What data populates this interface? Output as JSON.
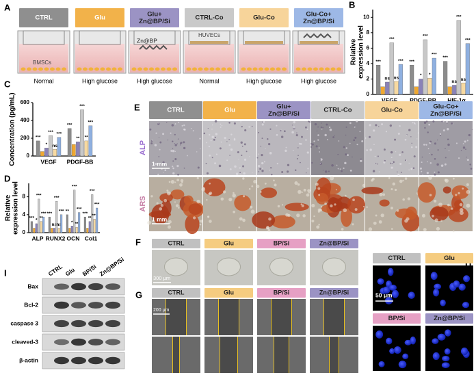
{
  "panel_letters": [
    "A",
    "B",
    "C",
    "D",
    "E",
    "F",
    "G",
    "H",
    "I"
  ],
  "panel_a": {
    "groups": [
      [
        "CTRL"
      ],
      [
        "Glu"
      ],
      [
        "Glu+",
        "Zn@BP/Si"
      ],
      [
        "CTRL-Co"
      ],
      [
        "Glu-Co"
      ],
      [
        "Glu-Co+",
        "Zn@BP/Si"
      ]
    ],
    "conditions": [
      "Normal",
      "High glucose",
      "High glucose",
      "Normal",
      "High glucose",
      "High glucose"
    ],
    "cell_bottom": "BMSCs",
    "material": "Zn@BP",
    "cell_top": "HUVECs"
  },
  "panel_e": {
    "groups": [
      [
        "CTRL"
      ],
      [
        "Glu"
      ],
      [
        "Glu+",
        "Zn@BP/Si"
      ],
      [
        "CTRL-Co"
      ],
      [
        "Glu-Co"
      ],
      [
        "Glu-Co+",
        "Zn@BP/Si"
      ]
    ],
    "rows": [
      "ALP",
      "ARS"
    ],
    "scale_bar": "1 mm"
  },
  "panel_f": {
    "groups": [
      "CTRL",
      "Glu",
      "BP/Si",
      "Zn@BP/Si"
    ],
    "scale_bar": "300 μm"
  },
  "panel_g": {
    "groups": [
      "CTRL",
      "Glu",
      "BP/Si",
      "Zn@BP/Si"
    ],
    "scale_bar": "200 μm"
  },
  "panel_h": {
    "groups": [
      "CTRL",
      "Glu",
      "BP/Si",
      "Zn@BP/Si"
    ],
    "scale_bar": "50 μm"
  },
  "panel_i": {
    "lanes": [
      "CTRL",
      "Glu",
      "BP/Si",
      "Zn@BP/Si"
    ],
    "proteins": [
      "Bax",
      "Bcl-2",
      "caspase 3",
      "cleaved-3",
      "β-actin"
    ]
  },
  "chart_data": [
    {
      "type": "bar",
      "y_label": [
        "Relative",
        "expression level"
      ],
      "categories": [
        "VEGF",
        "PDGF-BB",
        "HIF-1α"
      ],
      "ylim": [
        0,
        11
      ],
      "yticks": [
        0,
        2,
        4,
        6,
        8,
        10
      ],
      "series": [
        {
          "color": "#8c8c8c",
          "values": [
            3.8,
            3.8,
            4.3
          ],
          "significance": [
            "***",
            "***",
            "***"
          ]
        },
        {
          "color": "#f0a830",
          "values": [
            1,
            1,
            1
          ],
          "significance": [
            null,
            null,
            null
          ]
        },
        {
          "color": "#8a82b8",
          "values": [
            1.6,
            2.0,
            1.2
          ],
          "significance": [
            "ns",
            "*",
            "ns"
          ]
        },
        {
          "color": "#c8c8c8",
          "values": [
            6.7,
            7.1,
            9.6
          ],
          "significance": [
            "***",
            "***",
            "***"
          ]
        },
        {
          "color": "#f7d9a0",
          "values": [
            1.7,
            2.1,
            1.5
          ],
          "significance": [
            "ns",
            "*",
            "ns"
          ]
        },
        {
          "color": "#8fb0e0",
          "values": [
            3.9,
            4.7,
            6.6
          ],
          "significance": [
            "***",
            "***",
            "***"
          ]
        }
      ]
    },
    {
      "type": "bar",
      "y_label": [
        "Concentration (pg/mL)"
      ],
      "categories": [
        "VEGF",
        "PDGF-BB"
      ],
      "ylim": [
        0,
        600
      ],
      "yticks": [
        0,
        200,
        400,
        600
      ],
      "series": [
        {
          "color": "#8c8c8c",
          "values": [
            170,
            310
          ],
          "significance": [
            "***",
            "***"
          ]
        },
        {
          "color": "#f0a830",
          "values": [
            50,
            130
          ],
          "significance": [
            null,
            null
          ]
        },
        {
          "color": "#8a82b8",
          "values": [
            90,
            160
          ],
          "significance": [
            "*",
            "**"
          ]
        },
        {
          "color": "#c8c8c8",
          "values": [
            230,
            520
          ],
          "significance": [
            "***",
            "***"
          ]
        },
        {
          "color": "#f7d9a0",
          "values": [
            75,
            170
          ],
          "significance": [
            "ns",
            "**"
          ]
        },
        {
          "color": "#8fb0e0",
          "values": [
            210,
            340
          ],
          "significance": [
            "***",
            "***"
          ]
        }
      ]
    },
    {
      "type": "bar",
      "y_label": [
        "Relative",
        "expression level"
      ],
      "categories": [
        "ALP",
        "RUNX2",
        "OCN",
        "Col1"
      ],
      "ylim": [
        0,
        11
      ],
      "yticks": [
        0,
        4,
        8
      ],
      "series": [
        {
          "color": "#8c8c8c",
          "values": [
            2.5,
            3.5,
            4,
            3.5
          ],
          "significance": [
            "***",
            "***",
            "**",
            "***"
          ]
        },
        {
          "color": "#f0a830",
          "values": [
            1,
            1,
            1,
            1
          ],
          "significance": [
            null,
            null,
            null,
            null
          ]
        },
        {
          "color": "#8a82b8",
          "values": [
            2,
            1,
            1.5,
            2.5
          ],
          "significance": [
            "*",
            "ns",
            "*",
            "**"
          ]
        },
        {
          "color": "#c8c8c8",
          "values": [
            7.5,
            7,
            9.5,
            8.5
          ],
          "significance": [
            "***",
            "***",
            "***",
            "***"
          ]
        },
        {
          "color": "#f7d9a0",
          "values": [
            2.5,
            1,
            1.2,
            3
          ],
          "significance": [
            "**",
            "ns",
            "**",
            "***"
          ]
        },
        {
          "color": "#8fb0e0",
          "values": [
            3.5,
            4,
            4.5,
            5.5
          ],
          "significance": [
            "***",
            "***",
            "***",
            "***"
          ]
        }
      ]
    }
  ]
}
